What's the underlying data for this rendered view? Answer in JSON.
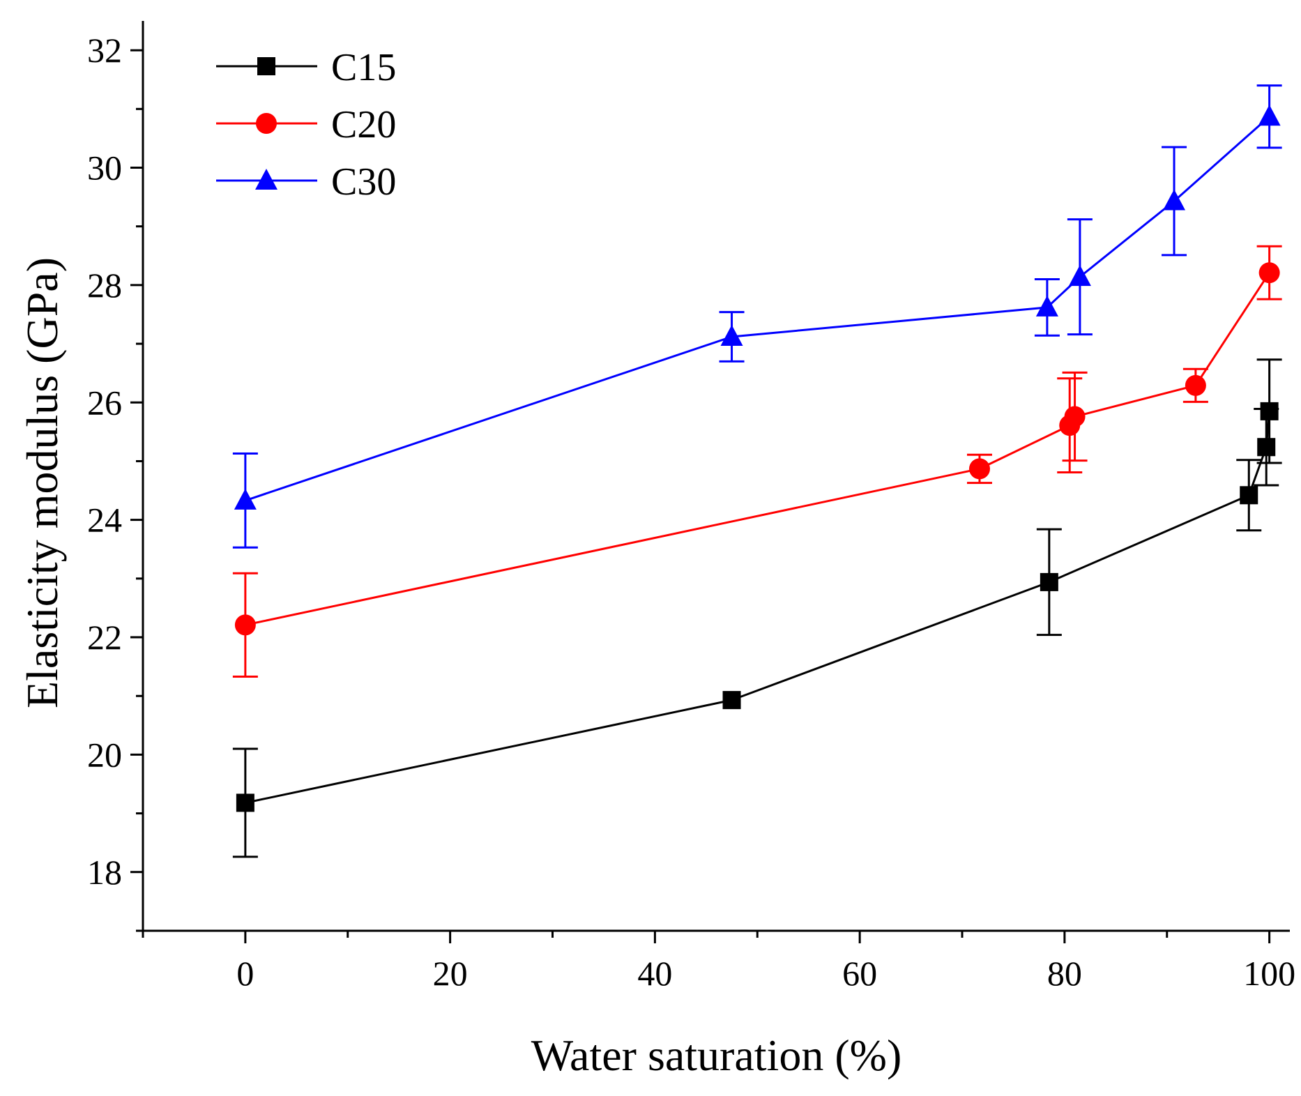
{
  "chart_data": {
    "type": "line",
    "title": "",
    "xlabel": "Water saturation (%)",
    "ylabel": "Elasticity modulus (GPa)",
    "xlim": [
      -10,
      102
    ],
    "ylim": [
      17,
      32.5
    ],
    "x_ticks": [
      0,
      20,
      40,
      60,
      80,
      100
    ],
    "y_ticks": [
      18,
      20,
      22,
      24,
      26,
      28,
      30,
      32
    ],
    "grid": false,
    "legend_position": "top-left",
    "series": [
      {
        "name": "C15",
        "color": "#000000",
        "marker": "square",
        "points": [
          {
            "x": 0,
            "y": 19.18,
            "err": 0.92
          },
          {
            "x": 47.5,
            "y": 20.93,
            "err": 0.0
          },
          {
            "x": 78.5,
            "y": 22.94,
            "err": 0.9
          },
          {
            "x": 98,
            "y": 24.42,
            "err": 0.6
          },
          {
            "x": 99.7,
            "y": 25.24,
            "err": 0.65
          },
          {
            "x": 100,
            "y": 25.85,
            "err": 0.88
          }
        ]
      },
      {
        "name": "C20",
        "color": "#ff0000",
        "marker": "circle",
        "points": [
          {
            "x": 0,
            "y": 22.21,
            "err": 0.88
          },
          {
            "x": 71.7,
            "y": 24.87,
            "err": 0.24
          },
          {
            "x": 80.5,
            "y": 25.61,
            "err": 0.8
          },
          {
            "x": 81,
            "y": 25.76,
            "err": 0.75
          },
          {
            "x": 92.8,
            "y": 26.29,
            "err": 0.28
          },
          {
            "x": 100,
            "y": 28.21,
            "err": 0.45
          }
        ]
      },
      {
        "name": "C30",
        "color": "#0000ff",
        "marker": "triangle",
        "points": [
          {
            "x": 0,
            "y": 24.33,
            "err": 0.8
          },
          {
            "x": 47.5,
            "y": 27.12,
            "err": 0.42
          },
          {
            "x": 78.3,
            "y": 27.62,
            "err": 0.48
          },
          {
            "x": 81.5,
            "y": 28.14,
            "err": 0.98
          },
          {
            "x": 90.7,
            "y": 29.43,
            "err": 0.92
          },
          {
            "x": 100,
            "y": 30.87,
            "err": 0.53
          }
        ]
      }
    ]
  }
}
